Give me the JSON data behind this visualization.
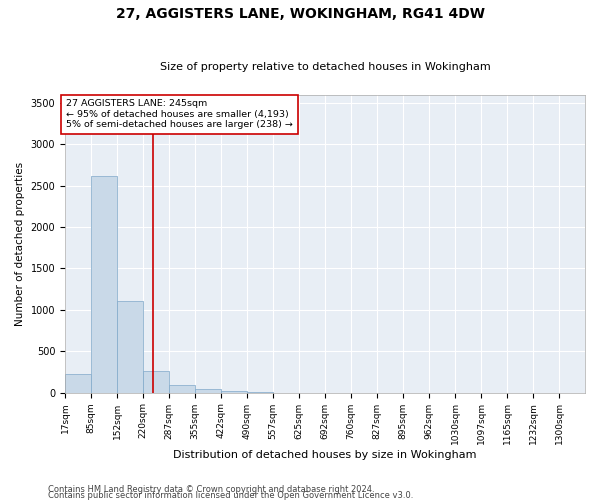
{
  "title": "27, AGGISTERS LANE, WOKINGHAM, RG41 4DW",
  "subtitle": "Size of property relative to detached houses in Wokingham",
  "xlabel": "Distribution of detached houses by size in Wokingham",
  "ylabel": "Number of detached properties",
  "footer_line1": "Contains HM Land Registry data © Crown copyright and database right 2024.",
  "footer_line2": "Contains public sector information licensed under the Open Government Licence v3.0.",
  "annotation_title": "27 AGGISTERS LANE: 245sqm",
  "annotation_line1": "← 95% of detached houses are smaller (4,193)",
  "annotation_line2": "5% of semi-detached houses are larger (238) →",
  "property_size": 245,
  "bar_edges": [
    17,
    85,
    152,
    220,
    287,
    355,
    422,
    490,
    557,
    625,
    692,
    760,
    827,
    895,
    962,
    1030,
    1097,
    1165,
    1232,
    1300,
    1367
  ],
  "bar_heights": [
    220,
    2620,
    1110,
    255,
    90,
    45,
    25,
    5,
    0,
    0,
    0,
    0,
    0,
    0,
    0,
    0,
    0,
    0,
    0,
    0
  ],
  "bar_color": "#c9d9e8",
  "bar_edge_color": "#7fa8c9",
  "vline_color": "#cc0000",
  "vline_x": 245,
  "annotation_box_color": "#cc0000",
  "background_color": "#e8eef5",
  "ylim": [
    0,
    3600
  ],
  "yticks": [
    0,
    500,
    1000,
    1500,
    2000,
    2500,
    3000,
    3500
  ]
}
